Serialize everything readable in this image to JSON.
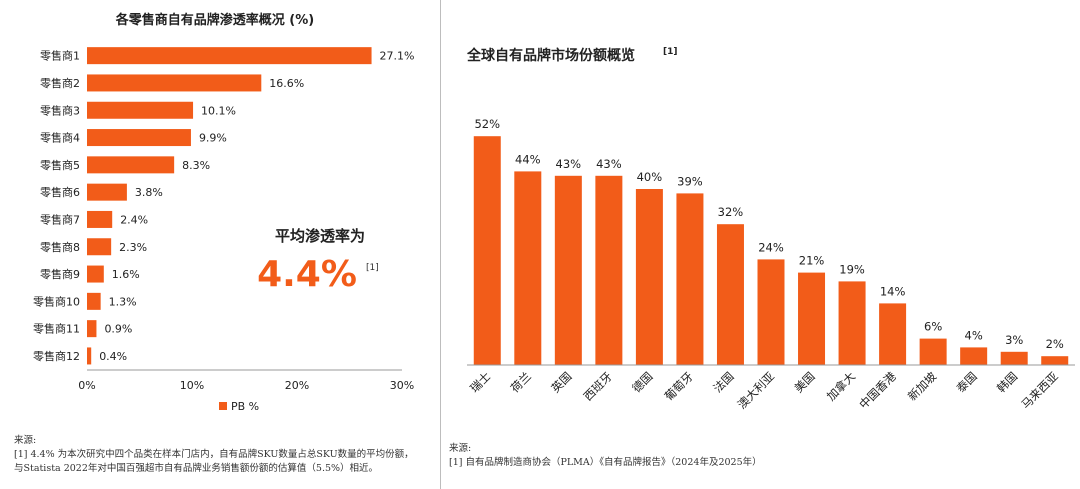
{
  "colors": {
    "bar": "#F25C19",
    "highlight": "#F25C19",
    "axis": "#999999",
    "text": "#222222"
  },
  "left_chart": {
    "title": "各零售商自有品牌渗透率概况 (%)",
    "legend_label": "PB %",
    "avg_label": "平均渗透率为",
    "avg_value": "4.4%",
    "avg_ref": "[1]",
    "source_title": "来源:",
    "source_lines": [
      "[1] 4.4% 为本次研究中四个品类在样本门店内，自有品牌SKU数量占总SKU数量的平均份额，",
      "与Statista 2022年对中国百强超市自有品牌业务销售额份额的估算值（5.5%）相近。"
    ]
  },
  "right_chart": {
    "title": "全球自有品牌市场份额概览",
    "title_ref": "[1]",
    "source_title": "来源:",
    "source_lines": [
      "[1] 自有品牌制造商协会（PLMA）《自有品牌报告》（2024年及2025年）"
    ]
  },
  "chart_data": [
    {
      "type": "bar",
      "orientation": "horizontal",
      "title": "各零售商自有品牌渗透率概况 (%)",
      "categories": [
        "零售商1",
        "零售商2",
        "零售商3",
        "零售商4",
        "零售商5",
        "零售商6",
        "零售商7",
        "零售商8",
        "零售商9",
        "零售商10",
        "零售商11",
        "零售商12"
      ],
      "series": [
        {
          "name": "PB %",
          "values": [
            27.1,
            16.6,
            10.1,
            9.9,
            8.3,
            3.8,
            2.4,
            2.3,
            1.6,
            1.3,
            0.9,
            0.4
          ]
        }
      ],
      "value_labels": [
        "27.1%",
        "16.6%",
        "10.1%",
        "9.9%",
        "8.3%",
        "3.8%",
        "2.4%",
        "2.3%",
        "1.6%",
        "1.3%",
        "0.9%",
        "0.4%"
      ],
      "xlim": [
        0,
        30
      ],
      "xticks": [
        "0%",
        "10%",
        "20%",
        "30%"
      ],
      "grid": false,
      "legend_position": "bottom"
    },
    {
      "type": "bar",
      "orientation": "vertical",
      "title": "全球自有品牌市场份额概览",
      "categories": [
        "瑞士",
        "荷兰",
        "英国",
        "西班牙",
        "德国",
        "葡萄牙",
        "法国",
        "澳大利亚",
        "美国",
        "加拿大",
        "中国香港",
        "新加坡",
        "泰国",
        "韩国",
        "马来西亚"
      ],
      "values": [
        52,
        44,
        43,
        43,
        40,
        39,
        32,
        24,
        21,
        19,
        14,
        6,
        4,
        3,
        2
      ],
      "value_labels": [
        "52%",
        "44%",
        "43%",
        "43%",
        "40%",
        "39%",
        "32%",
        "24%",
        "21%",
        "19%",
        "14%",
        "6%",
        "4%",
        "3%",
        "2%"
      ],
      "ylim": [
        0,
        60
      ],
      "grid": false
    }
  ]
}
